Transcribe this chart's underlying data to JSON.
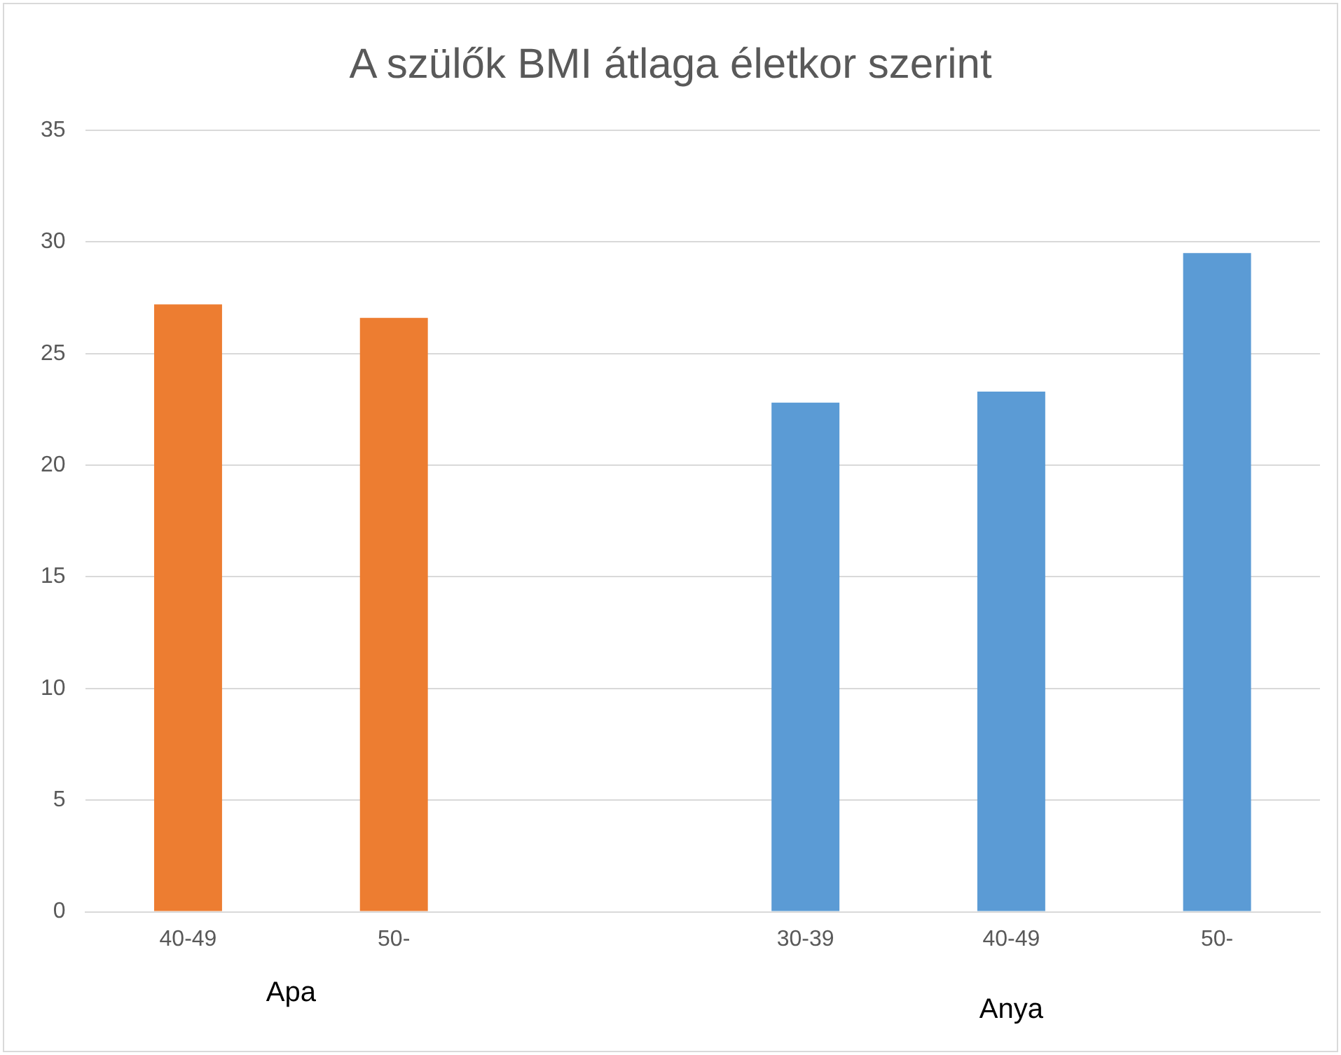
{
  "chart_data": {
    "type": "bar",
    "title": "A szülők BMI átlaga életkor szerint",
    "categories": [
      "40-49",
      "50-",
      null,
      "30-39",
      "40-49",
      "50-"
    ],
    "series": [
      {
        "name": "Apa",
        "color": "#ed7d31",
        "values": [
          27.2,
          26.6,
          null,
          null,
          null,
          null
        ]
      },
      {
        "name": "Anya",
        "color": "#5b9bd5",
        "values": [
          null,
          null,
          null,
          22.8,
          23.3,
          29.5
        ]
      }
    ],
    "ylim": [
      0,
      35
    ],
    "yticks": [
      0,
      5,
      10,
      15,
      20,
      25,
      30,
      35
    ],
    "grid": "y",
    "legend": false
  }
}
